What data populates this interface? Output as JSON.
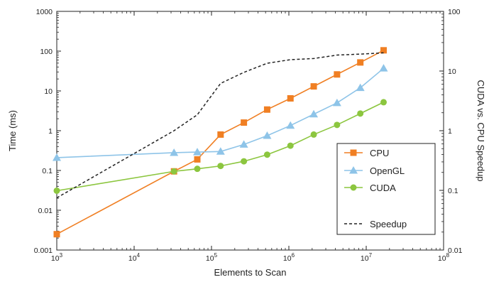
{
  "chart_data": {
    "type": "line",
    "xlabel": "Elements to Scan",
    "ylabel": "Time (ms)",
    "y2label": "CUDA vs. CPU Speedup",
    "x_scale": "log",
    "y_scale": "log",
    "y2_scale": "log",
    "xlim": [
      1000,
      100000000
    ],
    "ylim": [
      0.001,
      1000
    ],
    "y2lim": [
      0.01,
      100
    ],
    "x_ticks": [
      {
        "value": 1000,
        "base": "10",
        "exp": "3"
      },
      {
        "value": 10000,
        "base": "10",
        "exp": "4"
      },
      {
        "value": 100000,
        "base": "10",
        "exp": "5"
      },
      {
        "value": 1000000,
        "base": "10",
        "exp": "6"
      },
      {
        "value": 10000000,
        "base": "10",
        "exp": "7"
      },
      {
        "value": 100000000,
        "base": "10",
        "exp": "8"
      }
    ],
    "y_ticks": [
      {
        "value": 0.001,
        "label": "0.001"
      },
      {
        "value": 0.01,
        "label": "0.01"
      },
      {
        "value": 0.1,
        "label": "0.1"
      },
      {
        "value": 1,
        "label": "1"
      },
      {
        "value": 10,
        "label": "10"
      },
      {
        "value": 100,
        "label": "100"
      },
      {
        "value": 1000,
        "label": "1000"
      }
    ],
    "y2_ticks": [
      {
        "value": 0.01,
        "label": "0.01"
      },
      {
        "value": 0.1,
        "label": "0.1"
      },
      {
        "value": 1,
        "label": "1"
      },
      {
        "value": 10,
        "label": "10"
      },
      {
        "value": 100,
        "label": "100"
      }
    ],
    "legend_position": "lower-right",
    "series": [
      {
        "name": "CPU",
        "color": "#f07f23",
        "marker": "square",
        "axis": "left",
        "x": [
          1000,
          32768,
          65536,
          131072,
          262144,
          524288,
          1048576,
          2097152,
          4194304,
          8388608,
          16777216
        ],
        "values": [
          0.0025,
          0.095,
          0.19,
          0.8,
          1.6,
          3.4,
          6.5,
          13,
          26,
          52,
          105
        ]
      },
      {
        "name": "OpenGL",
        "color": "#8ec4e8",
        "marker": "triangle",
        "axis": "left",
        "x": [
          1000,
          32768,
          65536,
          131072,
          262144,
          524288,
          1048576,
          2097152,
          4194304,
          8388608,
          16777216
        ],
        "values": [
          0.21,
          0.28,
          0.29,
          0.3,
          0.45,
          0.75,
          1.35,
          2.6,
          5.0,
          12,
          37
        ]
      },
      {
        "name": "CUDA",
        "color": "#8cc63f",
        "marker": "circle",
        "axis": "left",
        "x": [
          1000,
          32768,
          65536,
          131072,
          262144,
          524288,
          1048576,
          2097152,
          4194304,
          8388608,
          16777216
        ],
        "values": [
          0.031,
          0.095,
          0.11,
          0.13,
          0.17,
          0.25,
          0.42,
          0.8,
          1.4,
          2.7,
          5.2
        ]
      },
      {
        "name": "Speedup",
        "color": "#222222",
        "marker": "none",
        "dashed": true,
        "axis": "right",
        "x": [
          1000,
          32768,
          65536,
          131072,
          262144,
          524288,
          1048576,
          2097152,
          4194304,
          8388608,
          16777216
        ],
        "values": [
          0.075,
          1.0,
          1.85,
          6.2,
          9.5,
          13.5,
          15.5,
          16.2,
          18.5,
          19.2,
          20.2
        ]
      }
    ]
  }
}
